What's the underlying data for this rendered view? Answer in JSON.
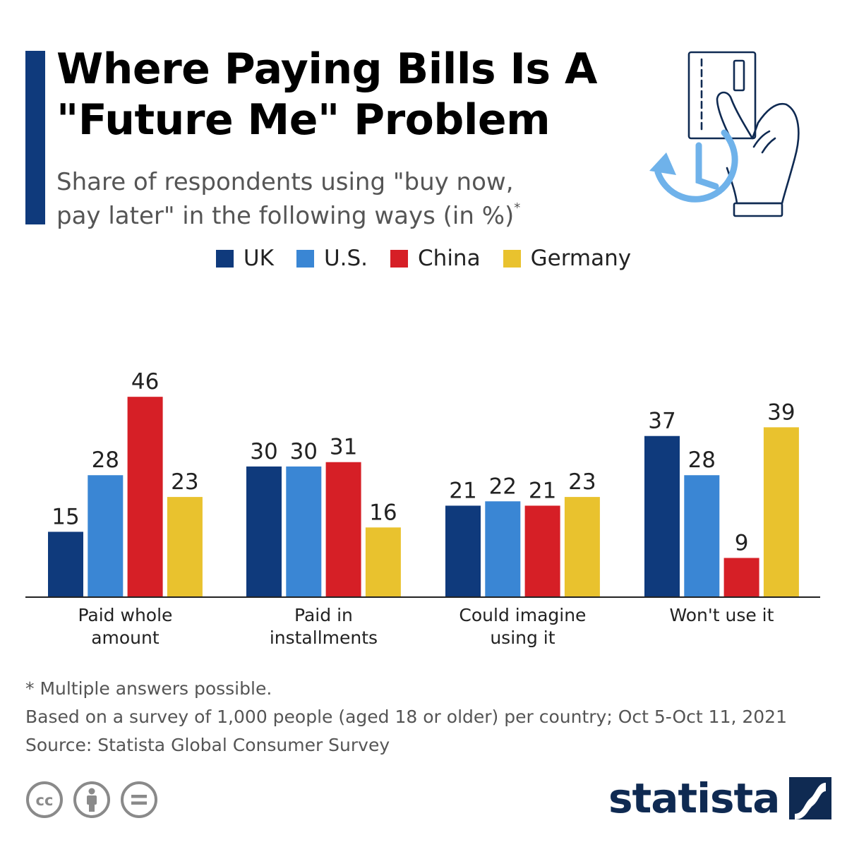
{
  "title_line1": "Where Paying Bills Is A",
  "title_line2": "\"Future Me\" Problem",
  "subtitle_line1": "Share of respondents using \"buy now,",
  "subtitle_line2": "pay later\" in the following ways (in %)",
  "subtitle_mark": "*",
  "legend": [
    {
      "label": "UK",
      "color": "#0f3a7c"
    },
    {
      "label": "U.S.",
      "color": "#3a86d4"
    },
    {
      "label": "China",
      "color": "#d61f26"
    },
    {
      "label": "Germany",
      "color": "#e9c22e"
    }
  ],
  "chart_data": {
    "type": "bar",
    "categories": [
      [
        "Paid whole",
        "amount"
      ],
      [
        "Paid in",
        "installments"
      ],
      [
        "Could imagine",
        "using it"
      ],
      [
        "Won't use it"
      ]
    ],
    "series": [
      {
        "name": "UK",
        "values": [
          15,
          30,
          21,
          37
        ],
        "color": "#0f3a7c"
      },
      {
        "name": "U.S.",
        "values": [
          28,
          30,
          22,
          28
        ],
        "color": "#3a86d4"
      },
      {
        "name": "China",
        "values": [
          46,
          31,
          21,
          9
        ],
        "color": "#d61f26"
      },
      {
        "name": "Germany",
        "values": [
          23,
          16,
          23,
          39
        ],
        "color": "#e9c22e"
      }
    ],
    "ylim": [
      0,
      46
    ],
    "grid": false,
    "legend": "top-center",
    "data_labels": true
  },
  "footnotes": [
    "* Multiple answers possible.",
    "Based on a survey of 1,000 people (aged 18 or older) per country; Oct 5-Oct 11, 2021",
    "Source: Statista Global Consumer Survey"
  ],
  "license_icons": [
    "cc-icon",
    "attribution-icon",
    "no-derivatives-icon"
  ],
  "brand": "statista",
  "hero_icon": "card-in-hand-with-clock-icon",
  "colors": {
    "accent": "#0f3a7c",
    "brand": "#0f2a52"
  }
}
